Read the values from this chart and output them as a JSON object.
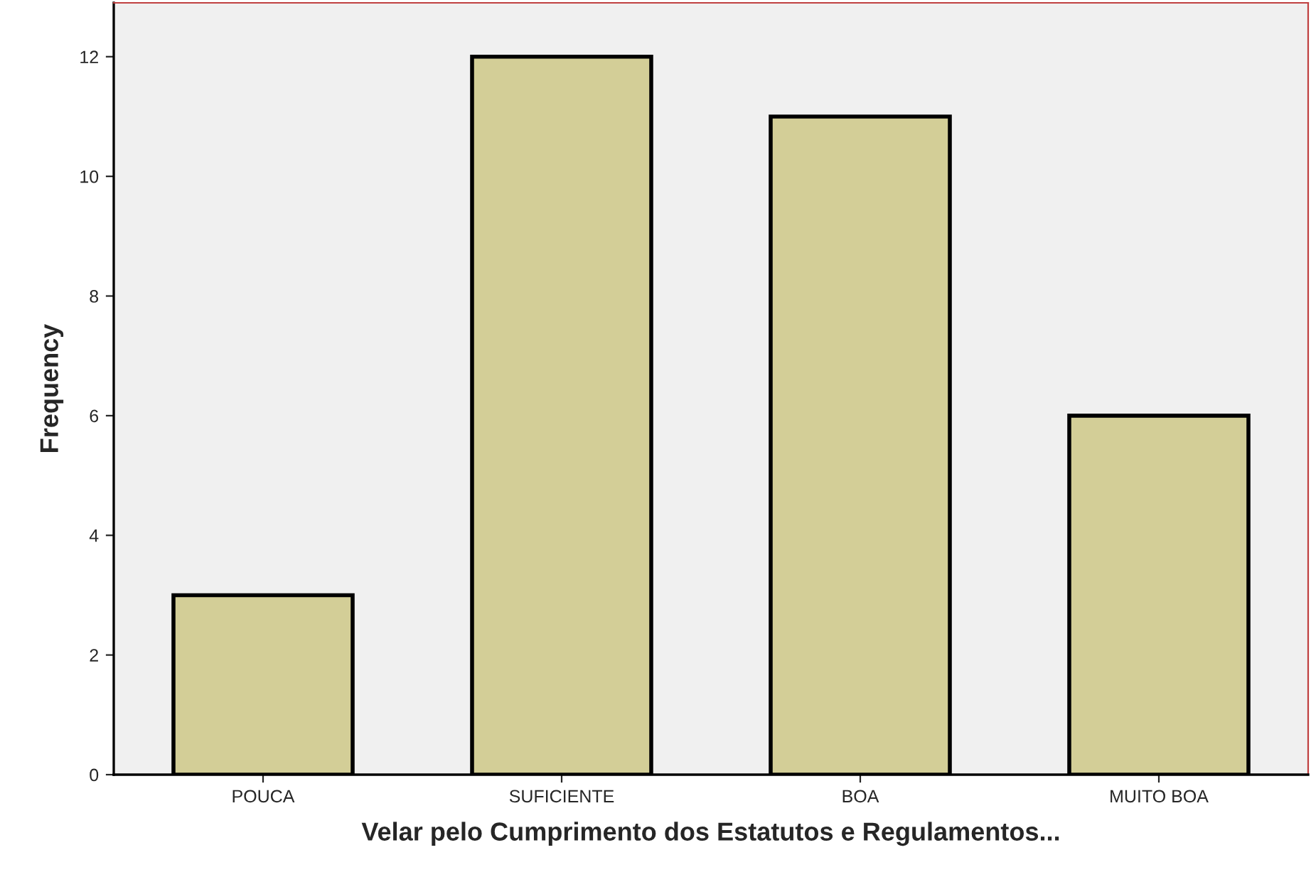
{
  "chart_data": {
    "type": "bar",
    "xlabel": "Velar pelo Cumprimento dos Estatutos e Regulamentos...",
    "ylabel": "Frequency",
    "categories": [
      "POUCA",
      "SUFICIENTE",
      "BOA",
      "MUITO BOA"
    ],
    "values": [
      3,
      12,
      11,
      6
    ],
    "color": "#d3ce97",
    "ylim": [
      0,
      12.9
    ],
    "yticks": [
      0,
      2,
      4,
      6,
      8,
      10,
      12
    ],
    "grid": false
  }
}
